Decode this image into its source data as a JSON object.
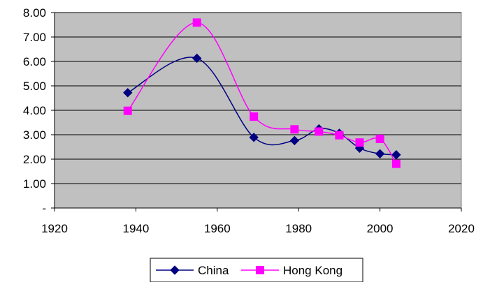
{
  "chart_data": {
    "type": "line",
    "title": "",
    "xlabel": "",
    "ylabel": "",
    "xlim": [
      1920,
      2020
    ],
    "ylim": [
      0,
      8
    ],
    "x_ticks": [
      1920,
      1940,
      1960,
      1980,
      2000,
      2020
    ],
    "y_ticks": [
      0,
      1,
      2,
      3,
      4,
      5,
      6,
      7,
      8
    ],
    "x_tick_labels": [
      "1920",
      "1940",
      "1960",
      "1980",
      "2000",
      "2020"
    ],
    "y_tick_labels": [
      "-",
      "1.00",
      "2.00",
      "3.00",
      "4.00",
      "5.00",
      "6.00",
      "7.00",
      "8.00"
    ],
    "grid": "horizontal",
    "plot_background": "#c0c0c0",
    "smoothed": true,
    "legend": "bottom",
    "series": [
      {
        "name": "China",
        "color": "#000080",
        "marker": "diamond",
        "x": [
          1938,
          1955,
          1969,
          1979,
          1985,
          1990,
          1995,
          2000,
          2004
        ],
        "y": [
          4.72,
          6.13,
          2.89,
          2.76,
          3.24,
          3.06,
          2.45,
          2.22,
          2.18
        ]
      },
      {
        "name": "Hong Kong",
        "color": "#ff00ff",
        "marker": "square",
        "x": [
          1938,
          1955,
          1969,
          1979,
          1985,
          1990,
          1995,
          2000,
          2004
        ],
        "y": [
          3.98,
          7.59,
          3.74,
          3.22,
          3.13,
          2.98,
          2.68,
          2.83,
          1.81
        ]
      }
    ]
  }
}
